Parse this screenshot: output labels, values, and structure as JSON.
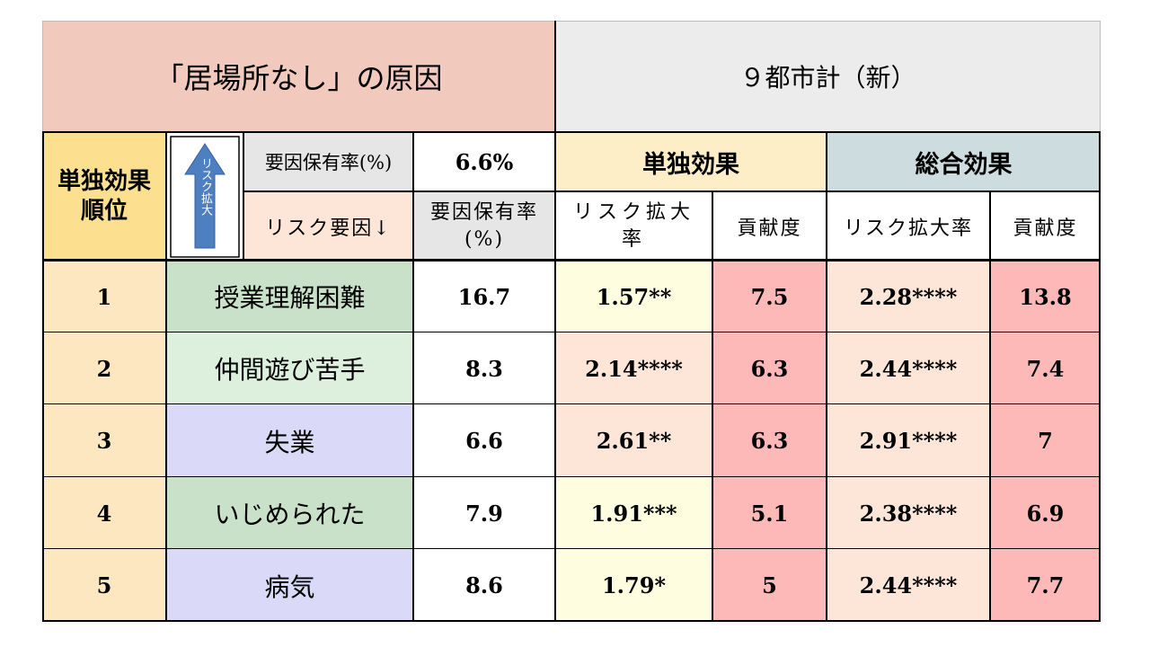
{
  "header": {
    "title": "「居場所なし」の原因",
    "region": "９都市計（新）"
  },
  "subheader": {
    "rank_label_line1": "単独効果",
    "rank_label_line2": "順位",
    "arrow_text": "リスク拡大",
    "prevalence_label": "要因保有率(%)",
    "overall_prevalence": "6.6%",
    "single_effect": "単独効果",
    "total_effect": "総合効果",
    "risk_factor_label": "リスク要因↓",
    "prevalence_col": "要因保有率(%)",
    "risk_ratio_single": "リスク拡大率",
    "contribution_single": "貢献度",
    "risk_ratio_total": "リスク拡大率",
    "contribution_total": "貢献度"
  },
  "rows": [
    {
      "rank": "1",
      "factor": "授業理解困難",
      "prevalence": "16.7",
      "single_ratio": "1.57**",
      "single_contrib": "7.5",
      "total_ratio": "2.28****",
      "total_contrib": "13.8"
    },
    {
      "rank": "2",
      "factor": "仲間遊び苦手",
      "prevalence": "8.3",
      "single_ratio": "2.14****",
      "single_contrib": "6.3",
      "total_ratio": "2.44****",
      "total_contrib": "7.4"
    },
    {
      "rank": "3",
      "factor": "失業",
      "prevalence": "6.6",
      "single_ratio": "2.61**",
      "single_contrib": "6.3",
      "total_ratio": "2.91****",
      "total_contrib": "7"
    },
    {
      "rank": "4",
      "factor": "いじめられた",
      "prevalence": "7.9",
      "single_ratio": "1.91***",
      "single_contrib": "5.1",
      "total_ratio": "2.38****",
      "total_contrib": "6.9"
    },
    {
      "rank": "5",
      "factor": "病気",
      "prevalence": "8.6",
      "single_ratio": "1.79*",
      "single_contrib": "5",
      "total_ratio": "2.44****",
      "total_contrib": "7.7"
    }
  ],
  "colors": {
    "title_bg": "#f1cabd",
    "region_bg": "#ececec",
    "rank_bg": "#fde7c1",
    "rank_header_bg": "#fde08f",
    "single_header_bg": "#fdeec8",
    "total_header_bg": "#cddddf",
    "factor_green": "#c9e0c9",
    "factor_lightgreen": "#ddefdd",
    "factor_purple": "#dadaf8",
    "ratio_yellow": "#fefddf",
    "ratio_peach": "#fde6d8",
    "contrib_pink": "#fdb8b8",
    "arrow_blue": "#4e7fc0"
  }
}
